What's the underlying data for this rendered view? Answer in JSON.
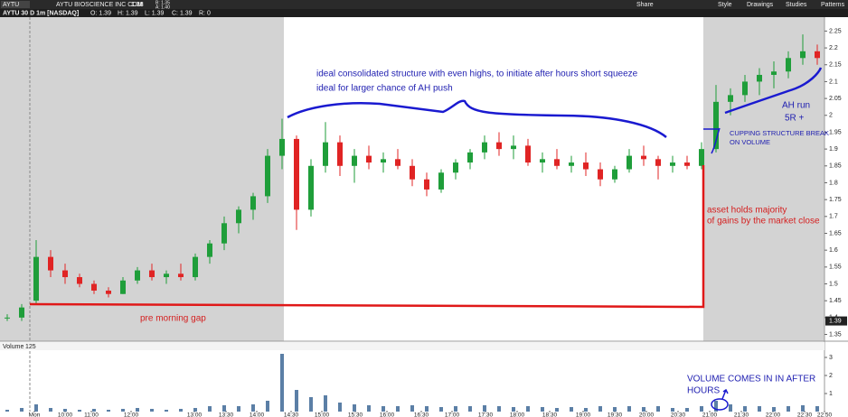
{
  "toolbar": {
    "symbol": "AYTU",
    "company": "AYTU BIOSCIENCE INC COM",
    "price": "1.38",
    "bid": "B: 1.35",
    "ask": "A: 1.40",
    "buttons": [
      "Share",
      "Style",
      "Drawings",
      "Studies",
      "Patterns"
    ]
  },
  "chart_data": {
    "type": "candlestick",
    "study_title": "AYTU 30 D 1m [NASDAQ]",
    "ohlc_readout": [
      "O: 1.39",
      "H: 1.39",
      "L: 1.39",
      "C: 1.39",
      "R: 0"
    ],
    "up_color": "#1f9e3a",
    "down_color": "#e02424",
    "volume_color": "#5b7fa6",
    "x": [
      8,
      24,
      40,
      56,
      72,
      88,
      104,
      120,
      136,
      152,
      168,
      184,
      200,
      216,
      232,
      248,
      264,
      280,
      296,
      312,
      328,
      344,
      360,
      376,
      392,
      408,
      424,
      440,
      456,
      472,
      488,
      504,
      520,
      536,
      552,
      568,
      584,
      600,
      616,
      632,
      648,
      664,
      680,
      696,
      712,
      728,
      744,
      760,
      776,
      792,
      808,
      824,
      840,
      856,
      872,
      888,
      904
    ],
    "open": [
      1.4,
      1.4,
      1.45,
      1.58,
      1.54,
      1.52,
      1.5,
      1.48,
      1.47,
      1.51,
      1.54,
      1.52,
      1.53,
      1.52,
      1.58,
      1.62,
      1.68,
      1.72,
      1.76,
      1.88,
      1.93,
      1.72,
      1.85,
      1.92,
      1.85,
      1.88,
      1.86,
      1.87,
      1.85,
      1.81,
      1.78,
      1.83,
      1.86,
      1.89,
      1.92,
      1.9,
      1.91,
      1.86,
      1.87,
      1.85,
      1.86,
      1.84,
      1.81,
      1.84,
      1.88,
      1.87,
      1.85,
      1.86,
      1.85,
      1.9,
      2.04,
      2.06,
      2.1,
      2.12,
      2.13,
      2.17,
      2.19
    ],
    "high": [
      1.41,
      1.44,
      1.63,
      1.6,
      1.56,
      1.53,
      1.51,
      1.49,
      1.52,
      1.55,
      1.56,
      1.54,
      1.56,
      1.59,
      1.63,
      1.7,
      1.73,
      1.77,
      1.9,
      1.99,
      1.94,
      1.87,
      1.98,
      1.94,
      1.9,
      1.91,
      1.89,
      1.9,
      1.87,
      1.83,
      1.84,
      1.87,
      1.9,
      1.94,
      1.95,
      1.94,
      1.93,
      1.89,
      1.9,
      1.88,
      1.89,
      1.86,
      1.85,
      1.9,
      1.91,
      1.88,
      1.88,
      1.88,
      1.92,
      2.09,
      2.08,
      2.12,
      2.14,
      2.16,
      2.19,
      2.24,
      2.21
    ],
    "low": [
      1.39,
      1.39,
      1.44,
      1.52,
      1.5,
      1.49,
      1.47,
      1.46,
      1.47,
      1.5,
      1.51,
      1.5,
      1.51,
      1.51,
      1.56,
      1.6,
      1.65,
      1.69,
      1.74,
      1.84,
      1.66,
      1.7,
      1.83,
      1.82,
      1.8,
      1.84,
      1.83,
      1.84,
      1.79,
      1.76,
      1.77,
      1.81,
      1.84,
      1.87,
      1.88,
      1.87,
      1.85,
      1.83,
      1.84,
      1.83,
      1.82,
      1.79,
      1.8,
      1.83,
      1.85,
      1.81,
      1.83,
      1.84,
      1.84,
      1.89,
      2.0,
      2.04,
      2.06,
      2.08,
      2.11,
      2.15,
      2.15
    ],
    "close": [
      1.4,
      1.43,
      1.58,
      1.54,
      1.52,
      1.5,
      1.48,
      1.47,
      1.51,
      1.54,
      1.52,
      1.53,
      1.52,
      1.58,
      1.62,
      1.68,
      1.72,
      1.76,
      1.88,
      1.93,
      1.72,
      1.85,
      1.92,
      1.85,
      1.88,
      1.86,
      1.87,
      1.85,
      1.81,
      1.78,
      1.83,
      1.86,
      1.89,
      1.92,
      1.9,
      1.91,
      1.86,
      1.87,
      1.85,
      1.86,
      1.84,
      1.81,
      1.84,
      1.88,
      1.87,
      1.85,
      1.86,
      1.85,
      1.9,
      2.04,
      2.06,
      2.1,
      2.12,
      2.13,
      2.17,
      2.19,
      2.17
    ],
    "volume": [
      0.1,
      0.2,
      0.4,
      0.2,
      0.15,
      0.1,
      0.15,
      0.1,
      0.15,
      0.2,
      0.15,
      0.1,
      0.15,
      0.2,
      0.3,
      0.35,
      0.3,
      0.4,
      0.6,
      3.2,
      1.2,
      0.8,
      0.9,
      0.5,
      0.4,
      0.35,
      0.3,
      0.3,
      0.35,
      0.3,
      0.25,
      0.3,
      0.3,
      0.35,
      0.3,
      0.25,
      0.3,
      0.25,
      0.2,
      0.25,
      0.2,
      0.3,
      0.25,
      0.3,
      0.25,
      0.3,
      0.2,
      0.2,
      0.3,
      0.6,
      0.4,
      0.3,
      0.3,
      0.25,
      0.3,
      0.35,
      0.3
    ],
    "last_price": 1.39,
    "xlim": [
      0,
      912
    ],
    "xticks": [
      {
        "value": 38,
        "label": "Mon"
      },
      {
        "value": 72,
        "label": "10:00"
      },
      {
        "value": 101,
        "label": "11:00"
      },
      {
        "value": 145,
        "label": "12:00"
      },
      {
        "value": 215,
        "label": "13:00"
      },
      {
        "value": 250,
        "label": "13:30"
      },
      {
        "value": 284,
        "label": "14:00"
      },
      {
        "value": 322,
        "label": "14:30"
      },
      {
        "value": 356,
        "label": "15:00"
      },
      {
        "value": 393,
        "label": "15:30"
      },
      {
        "value": 428,
        "label": "16:00"
      },
      {
        "value": 466,
        "label": "16:30"
      },
      {
        "value": 500,
        "label": "17:00"
      },
      {
        "value": 537,
        "label": "17:30"
      },
      {
        "value": 572,
        "label": "18:00"
      },
      {
        "value": 608,
        "label": "18:30"
      },
      {
        "value": 645,
        "label": "19:00"
      },
      {
        "value": 680,
        "label": "19:30"
      },
      {
        "value": 715,
        "label": "20:00"
      },
      {
        "value": 750,
        "label": "20:30"
      },
      {
        "value": 785,
        "label": "21:00"
      },
      {
        "value": 820,
        "label": "21:30"
      },
      {
        "value": 855,
        "label": "22:00"
      },
      {
        "value": 890,
        "label": "22:30"
      },
      {
        "value": 912,
        "label": "22:50"
      }
    ],
    "ylim": [
      1.33,
      2.31
    ],
    "yticks": [
      1.35,
      1.4,
      1.45,
      1.5,
      1.55,
      1.6,
      1.65,
      1.7,
      1.75,
      1.8,
      1.85,
      1.9,
      1.95,
      2,
      2.05,
      2.1,
      2.15,
      2.2,
      2.25
    ],
    "volume_title": "Volume",
    "volume_period": "125",
    "vlim": [
      0,
      3.4
    ],
    "vticks": [
      1,
      2,
      3
    ],
    "annotations": [
      "ideal consolidated structure with even highs, to initiate after hours short squeeze",
      "ideal for larger chance of AH push",
      "asset holds majority",
      "of gains by the market close",
      "pre morning gap",
      "AH run",
      "5R +",
      "CUPPING STRUCTURE BREAK",
      "ON VOLUME",
      "VOLUME COMES IN IN AFTER",
      "HOURS"
    ]
  }
}
